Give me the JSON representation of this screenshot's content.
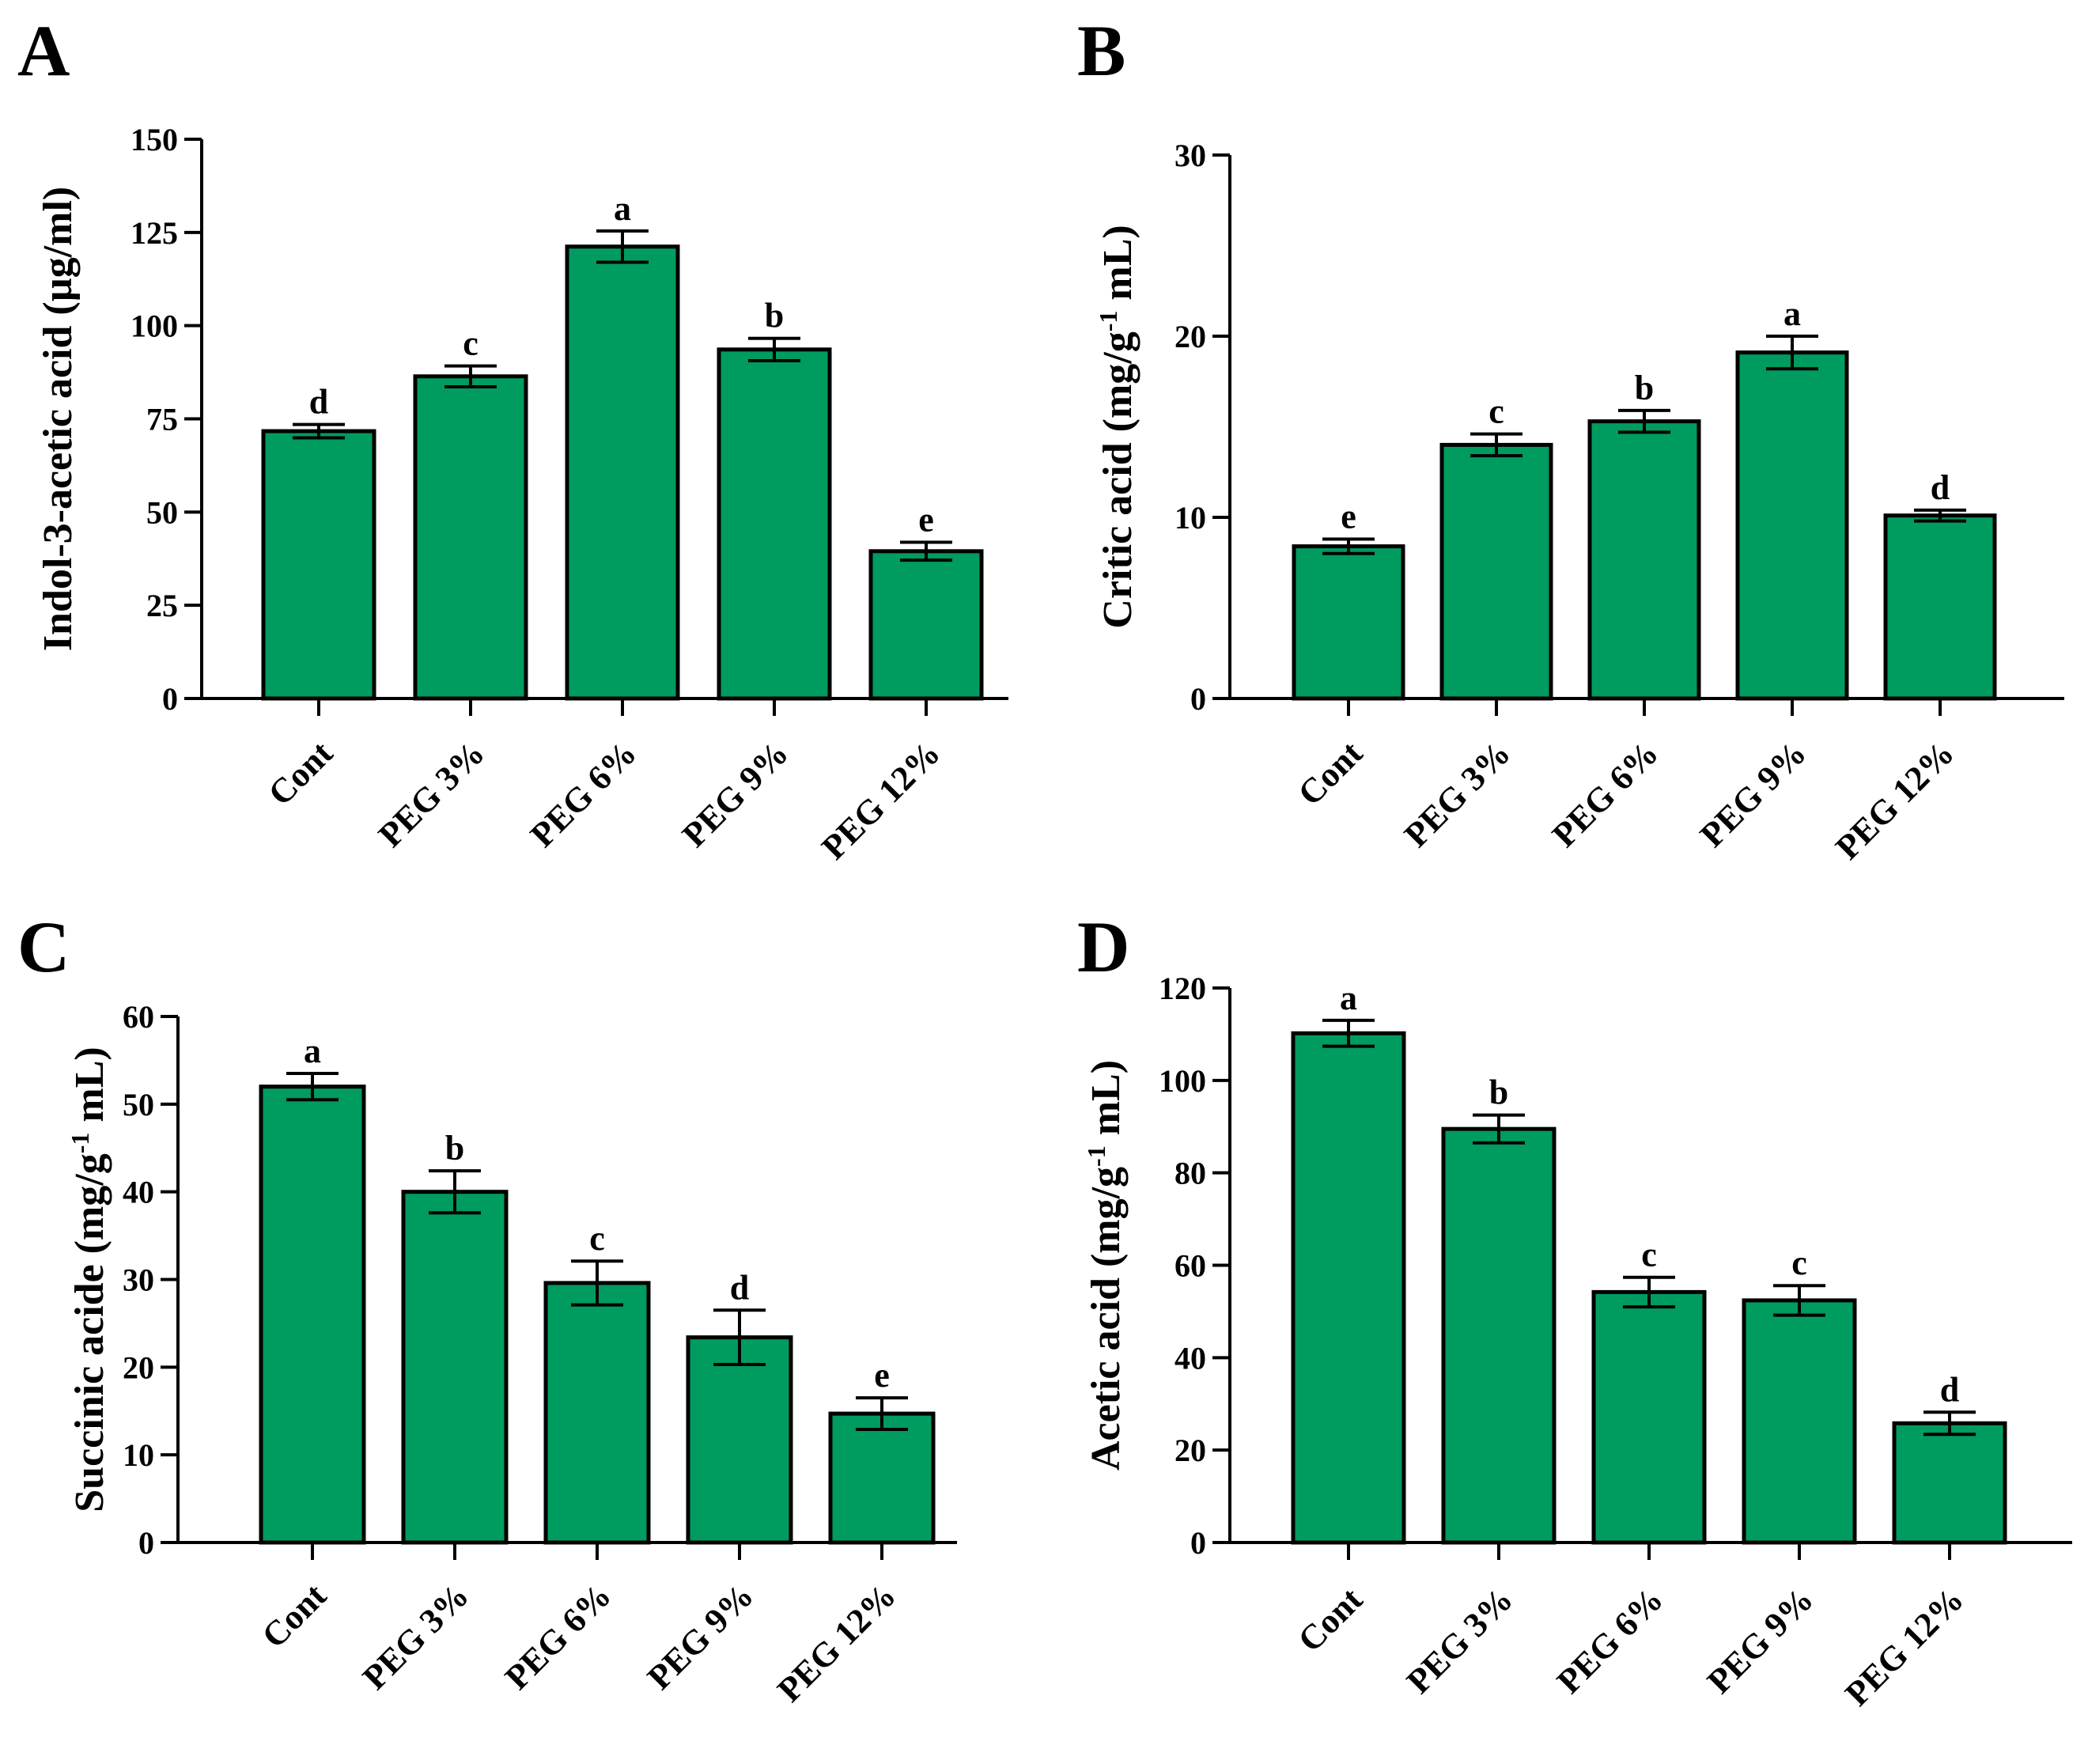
{
  "bar_color": "#009b5f",
  "chart_data": [
    {
      "type": "bar",
      "panel": "A",
      "categories": [
        "Cont",
        "PEG 3%",
        "PEG 6%",
        "PEG 9%",
        "PEG 12%"
      ],
      "values": [
        71.7,
        86.4,
        121.2,
        93.6,
        39.5
      ],
      "errors": [
        1.8,
        2.8,
        4.2,
        3.0,
        2.4
      ],
      "significance": [
        "d",
        "c",
        "a",
        "b",
        "e"
      ],
      "ylabel": "Indol-3-acetic acid (µg/ml)",
      "ylim": [
        0,
        150
      ],
      "yticks": [
        0,
        25,
        50,
        75,
        100,
        125,
        150
      ],
      "grid": false
    },
    {
      "type": "bar",
      "panel": "B",
      "categories": [
        "Cont",
        "PEG 3%",
        "PEG 6%",
        "PEG 9%",
        "PEG 12%"
      ],
      "values": [
        8.4,
        14.0,
        15.3,
        19.1,
        10.1
      ],
      "errors": [
        0.4,
        0.6,
        0.6,
        0.9,
        0.3
      ],
      "significance": [
        "e",
        "c",
        "b",
        "a",
        "d"
      ],
      "ylabel_parts": [
        "Critic acid (mg/g",
        "-1",
        " mL)"
      ],
      "ylim": [
        0,
        30
      ],
      "yticks": [
        0,
        10,
        20,
        30
      ],
      "grid": false
    },
    {
      "type": "bar",
      "panel": "C",
      "categories": [
        "Cont",
        "PEG 3%",
        "PEG 6%",
        "PEG 9%",
        "PEG 12%"
      ],
      "values": [
        52.0,
        40.0,
        29.6,
        23.4,
        14.7
      ],
      "errors": [
        1.5,
        2.4,
        2.5,
        3.1,
        1.8
      ],
      "significance": [
        "a",
        "b",
        "c",
        "d",
        "e"
      ],
      "ylabel_parts": [
        "Succinic acide (mg/g",
        "-1",
        " mL)"
      ],
      "ylim": [
        0,
        60
      ],
      "yticks": [
        0,
        10,
        20,
        30,
        40,
        50,
        60
      ],
      "grid": false
    },
    {
      "type": "bar",
      "panel": "D",
      "categories": [
        "Cont",
        "PEG 3%",
        "PEG 6%",
        "PEG 9%",
        "PEG 12%"
      ],
      "values": [
        110.2,
        89.5,
        54.2,
        52.4,
        25.8
      ],
      "errors": [
        2.8,
        3.0,
        3.2,
        3.2,
        2.4
      ],
      "significance": [
        "a",
        "b",
        "c",
        "c",
        "d"
      ],
      "ylabel_parts": [
        "Acetic acid (mg/g",
        "-1",
        " mL)"
      ],
      "ylim": [
        0,
        120
      ],
      "yticks": [
        0,
        20,
        40,
        60,
        80,
        100,
        120
      ],
      "grid": false
    }
  ]
}
